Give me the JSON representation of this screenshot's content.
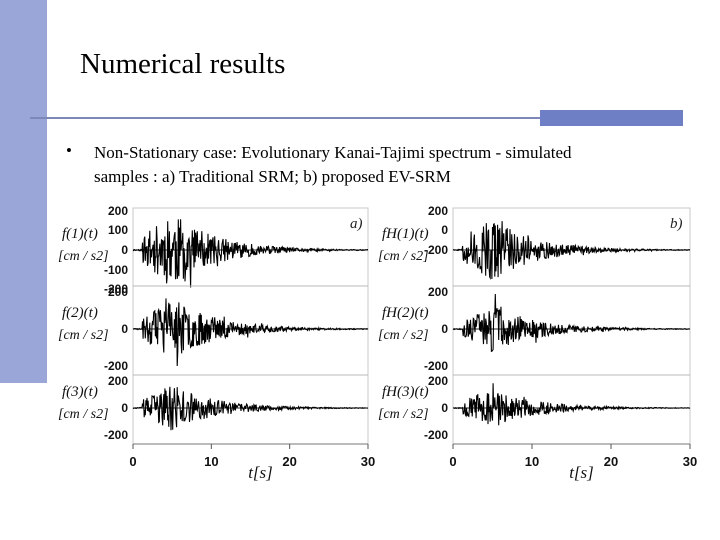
{
  "slide": {
    "title": "Numerical results",
    "bullet_line1": "Non-Stationary case:  Evolutionary  Kanai-Tajimi spectrum  - simulated",
    "bullet_line2": "samples : a) Traditional SRM; b) proposed EV-SRM",
    "accent_color": "#9aa6d8"
  },
  "chart_data": [
    {
      "type": "line",
      "panel_label": "a)",
      "description_text": "Traditional SRM",
      "x_label": "t[s]",
      "xlim": [
        0,
        30
      ],
      "x_ticks": [
        "0",
        "10",
        "20",
        "30"
      ],
      "series": [
        {
          "name": "f(1)(t)",
          "unit": "[cm / s2]",
          "ylim": [
            -200,
            200
          ],
          "y_ticks": [
            "200",
            "100",
            "0",
            "100",
            "200"
          ],
          "peak": 195,
          "seed": 11
        },
        {
          "name": "f(2)(t)",
          "unit": "[cm / s2]",
          "ylim": [
            -200,
            200
          ],
          "y_ticks": [
            "200",
            "0",
            "200"
          ],
          "peak": 170,
          "seed": 23
        },
        {
          "name": "f(3)(t)",
          "unit": "[cm / s2]",
          "ylim": [
            -200,
            200
          ],
          "y_ticks": [
            "200",
            "0",
            "200"
          ],
          "peak": 175,
          "seed": 37
        }
      ]
    },
    {
      "type": "line",
      "panel_label": "b)",
      "description_text": "proposed EV-SRM",
      "x_label": "t[s]",
      "xlim": [
        0,
        30
      ],
      "x_ticks": [
        "0",
        "10",
        "20",
        "30"
      ],
      "series": [
        {
          "name": "fH(1)(t)",
          "unit": "[cm / s2]",
          "ylim": [
            -200,
            200
          ],
          "y_ticks": [
            "200",
            "0",
            "200"
          ],
          "peak": 160,
          "seed": 51
        },
        {
          "name": "fH(2)(t)",
          "unit": "[cm / s2]",
          "ylim": [
            -200,
            200
          ],
          "y_ticks": [
            "200",
            "0",
            "200"
          ],
          "peak": 130,
          "seed": 67
        },
        {
          "name": "fH(3)(t)",
          "unit": "[cm / s2]",
          "ylim": [
            -200,
            200
          ],
          "y_ticks": [
            "200",
            "0",
            "200"
          ],
          "peak": 150,
          "seed": 79
        }
      ]
    }
  ]
}
